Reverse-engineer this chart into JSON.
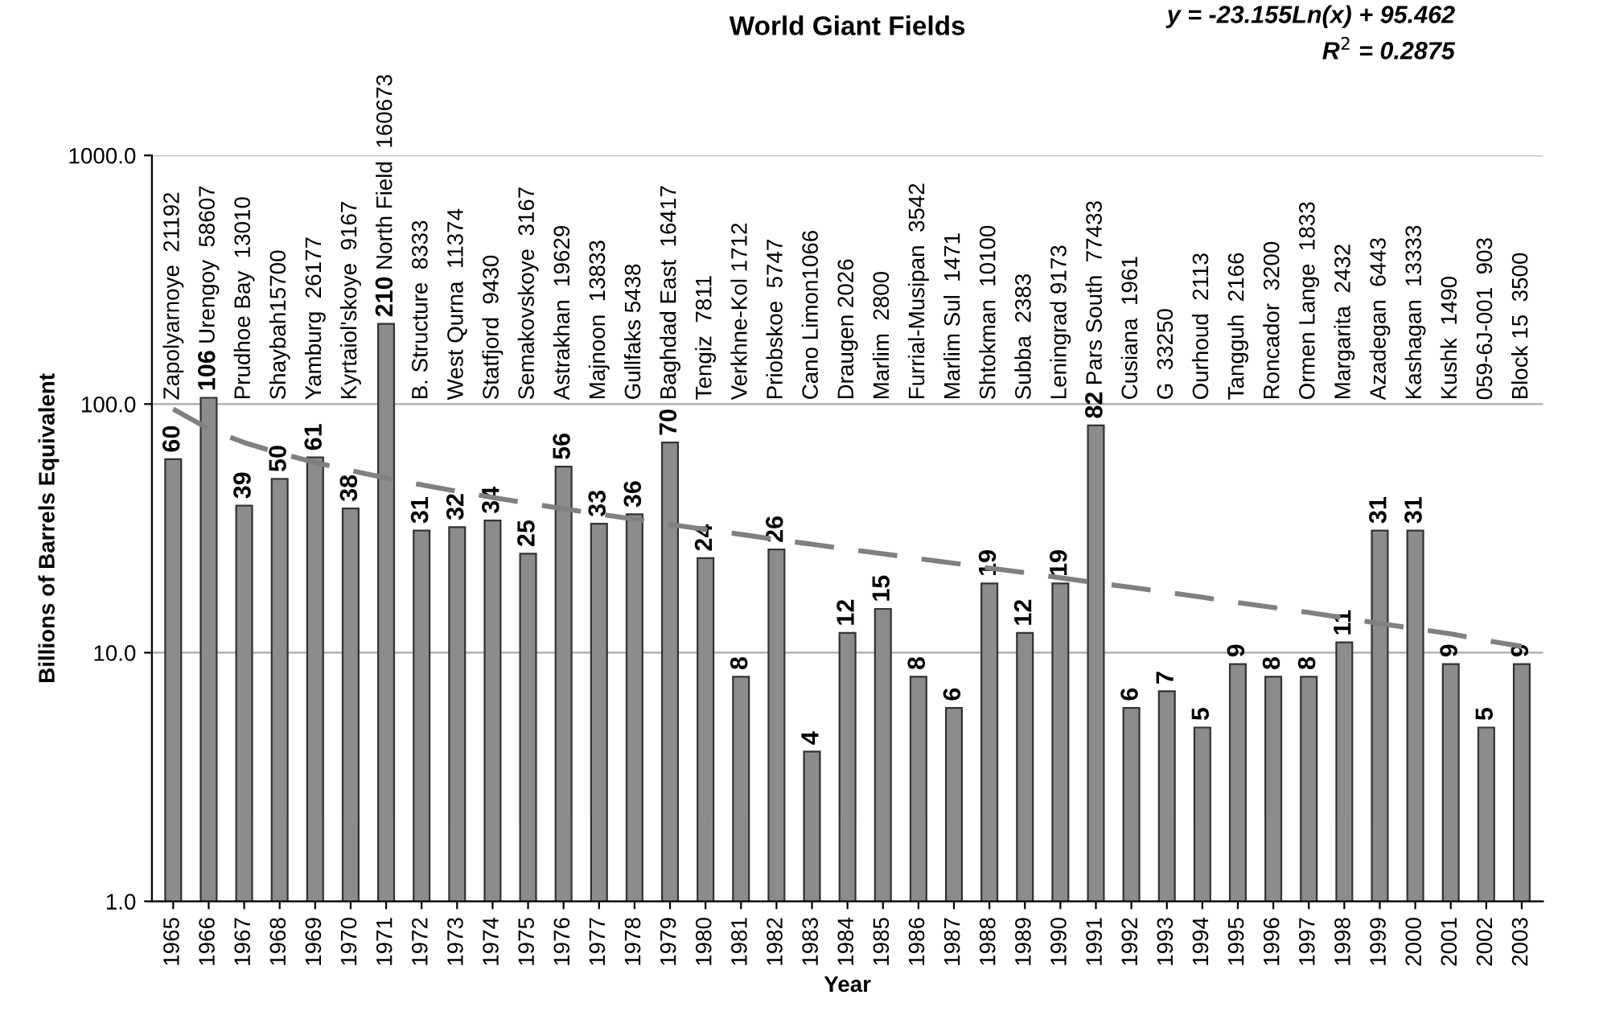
{
  "chart_data": {
    "type": "bar",
    "title": "World Giant Fields",
    "xlabel": "Year",
    "ylabel": "Billions of Barrels Equivalent",
    "categories": [
      "1965",
      "1966",
      "1967",
      "1968",
      "1969",
      "1970",
      "1971",
      "1972",
      "1973",
      "1974",
      "1975",
      "1976",
      "1977",
      "1978",
      "1979",
      "1980",
      "1981",
      "1982",
      "1983",
      "1984",
      "1985",
      "1986",
      "1987",
      "1988",
      "1989",
      "1990",
      "1991",
      "1992",
      "1993",
      "1994",
      "1995",
      "1996",
      "1997",
      "1998",
      "1999",
      "2000",
      "2001",
      "2002",
      "2003"
    ],
    "series": [
      {
        "color": "#8c8c8c",
        "values": [
          60,
          106,
          39,
          50,
          61,
          38,
          210,
          31,
          32,
          34,
          25,
          56,
          33,
          36,
          70,
          24,
          8,
          26,
          4,
          12,
          15,
          8,
          6,
          19,
          12,
          19,
          82,
          6,
          7,
          5,
          9,
          8,
          8,
          11,
          31,
          31,
          9,
          5,
          9
        ],
        "value_labels": [
          "60",
          "106",
          "39",
          "50",
          "61",
          "38",
          "210",
          "31",
          "32",
          "34",
          "25",
          "56",
          "33",
          "36",
          "70",
          "24",
          "8",
          "26",
          "4",
          "12",
          "15",
          "8",
          "6",
          "19",
          "12",
          "19",
          "82",
          "6",
          "7",
          "5",
          "9",
          "8",
          "8",
          "11",
          "31",
          "31",
          "9",
          "5",
          "9"
        ]
      },
      {
        "type": "line",
        "color": "#808080",
        "line_style": "dashed",
        "values": [
          95.5,
          79.4,
          70.0,
          63.4,
          58.2,
          54.0,
          50.4,
          47.3,
          44.6,
          42.1,
          39.9,
          37.9,
          36.1,
          34.4,
          32.8,
          31.3,
          29.9,
          28.5,
          27.3,
          26.1,
          25.0,
          23.9,
          22.9,
          21.9,
          21.0,
          20.0,
          19.1,
          18.3,
          17.5,
          16.7,
          15.9,
          15.2,
          14.5,
          13.8,
          13.1,
          12.5,
          11.9,
          11.2,
          10.6
        ]
      }
    ],
    "log": "y",
    "ylim": [
      1,
      1000
    ],
    "yticks": [
      {
        "value": 1,
        "label": "1.0"
      },
      {
        "value": 10,
        "label": "10.0"
      },
      {
        "value": 100,
        "label": "100.0"
      },
      {
        "value": 1000,
        "label": "1000.0"
      }
    ],
    "grid": "y",
    "annotations": [
      "y = -23.155Ln(x) + 95.462",
      "R$^{2}$ = 0.2875",
      "Zapolyarnoye  21192",
      "Urengoy  58607",
      "Prudhoe Bay  13010",
      "Shaybah15700",
      "Yamburg  26177",
      "Kyrtaiol'skoye  9167",
      "North Field  160673",
      "B. Structure  8333",
      "West Qurna  11374",
      "Statfjord  9430",
      "Semakovskoye  3167",
      "Astrakhan  19629",
      "Majnoon  13833",
      "Gullfaks 5438",
      "Baghdad East  16417",
      "Tengiz  7811",
      "Verkhne-Kol 1712",
      "Priobskoe  5747",
      "Cano Limon1066",
      "Draugen 2026",
      "Marlim  2800",
      "Furrial-Musipan  3542",
      "Marlim Sul  1471",
      "Shtokman  10100",
      "Subba  2383",
      "Leningrad 9173",
      "Pars South  77433",
      "Cusiana  1961",
      "G  33250",
      "Ourhoud  2113",
      "Tangguh  2166",
      "Roncador  3200",
      "Ormen Lange  1833",
      "Margarita  2432",
      "Azadegan  6443",
      "Kashagan  13333",
      "Kushk  1490",
      "059-6J-001  903",
      "Block 15  3500"
    ]
  }
}
